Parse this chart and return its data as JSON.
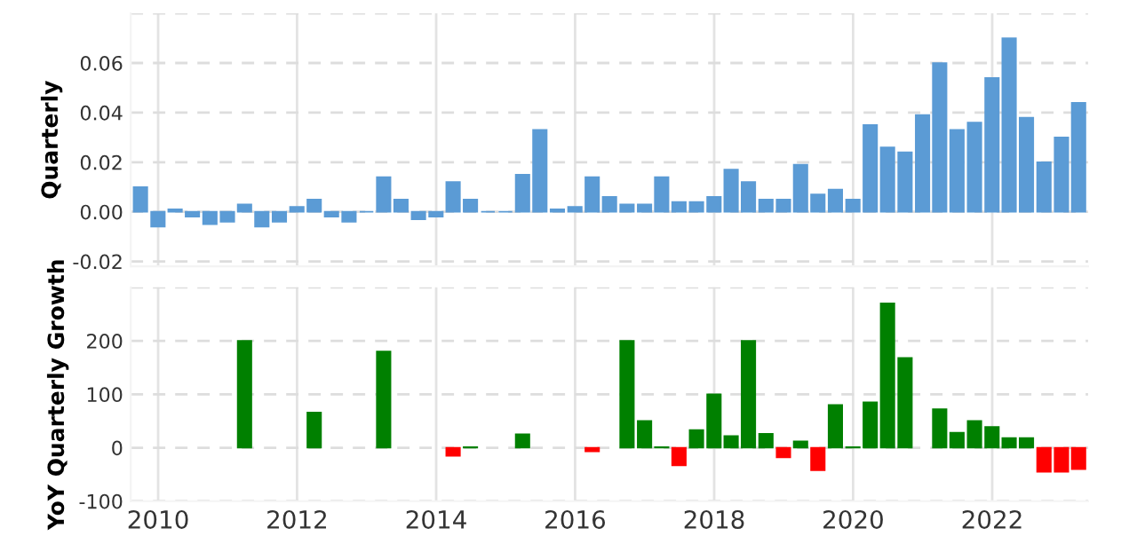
{
  "chart_data": [
    {
      "type": "bar",
      "ylabel": "Quarterly",
      "x": [
        "2009-09-30",
        "2009-12-31",
        "2010-03-31",
        "2010-06-30",
        "2010-09-30",
        "2010-12-31",
        "2011-03-31",
        "2011-06-30",
        "2011-09-30",
        "2011-12-31",
        "2012-03-31",
        "2012-06-30",
        "2012-09-30",
        "2012-12-31",
        "2013-03-31",
        "2013-06-30",
        "2013-09-30",
        "2013-12-31",
        "2014-03-31",
        "2014-06-30",
        "2014-09-30",
        "2014-12-31",
        "2015-03-31",
        "2015-06-30",
        "2015-09-30",
        "2015-12-31",
        "2016-03-31",
        "2016-06-30",
        "2016-09-30",
        "2016-12-31",
        "2017-03-31",
        "2017-06-30",
        "2017-09-30",
        "2017-12-31",
        "2018-03-31",
        "2018-06-30",
        "2018-09-30",
        "2018-12-31",
        "2019-03-31",
        "2019-06-30",
        "2019-09-30",
        "2019-12-31",
        "2020-03-31",
        "2020-06-30",
        "2020-09-30",
        "2020-12-31",
        "2021-03-31",
        "2021-06-30",
        "2021-09-30",
        "2021-12-31",
        "2022-03-31",
        "2022-06-30",
        "2022-09-30",
        "2022-12-31",
        "2023-03-31"
      ],
      "series": [
        {
          "color": "#5b9bd5",
          "values": [
            0.01,
            -0.006,
            0.001,
            -0.002,
            -0.005,
            -0.004,
            0.003,
            -0.006,
            -0.004,
            0.002,
            0.005,
            -0.002,
            -0.004,
            0.0,
            0.014,
            0.005,
            -0.003,
            -0.002,
            0.012,
            0.005,
            0.0,
            0.0,
            0.015,
            0.033,
            0.001,
            0.002,
            0.014,
            0.006,
            0.003,
            0.003,
            0.014,
            0.004,
            0.004,
            0.006,
            0.017,
            0.012,
            0.005,
            0.005,
            0.019,
            0.007,
            0.009,
            0.005,
            0.035,
            0.026,
            0.024,
            0.039,
            0.06,
            0.033,
            0.036,
            0.054,
            0.07,
            0.038,
            0.02,
            0.03,
            0.044
          ]
        }
      ],
      "xlim": [
        "2009-08-10",
        "2023-05-20"
      ],
      "xticks": [
        "2010",
        "2012",
        "2014",
        "2016",
        "2018",
        "2020",
        "2022"
      ],
      "ylim": [
        -0.022,
        0.08
      ],
      "yticks": [
        {
          "value": -0.02,
          "label": "-0.02"
        },
        {
          "value": 0,
          "label": "0.00"
        },
        {
          "value": 0.02,
          "label": "0.02"
        },
        {
          "value": 0.04,
          "label": "0.04"
        },
        {
          "value": 0.06,
          "label": "0.06"
        },
        {
          "value": 0.08,
          "label": null
        }
      ],
      "grid": true,
      "tick_labels": "y"
    },
    {
      "type": "bar",
      "ylabel": "YoY Quarterly Growth",
      "x": [
        "2011-03-31",
        "2012-03-31",
        "2013-03-31",
        "2014-03-31",
        "2014-06-30",
        "2015-03-31",
        "2016-03-31",
        "2016-09-30",
        "2016-12-31",
        "2017-03-31",
        "2017-06-30",
        "2017-09-30",
        "2017-12-31",
        "2018-03-31",
        "2018-06-30",
        "2018-09-30",
        "2018-12-31",
        "2019-03-31",
        "2019-06-30",
        "2019-09-30",
        "2019-12-31",
        "2020-03-31",
        "2020-06-30",
        "2020-09-30",
        "2021-03-31",
        "2021-06-30",
        "2021-09-30",
        "2021-12-31",
        "2022-03-31",
        "2022-06-30",
        "2022-09-30",
        "2022-12-31",
        "2023-03-31"
      ],
      "values": [
        200,
        66,
        180,
        -15,
        1,
        25,
        -7,
        200,
        50,
        1,
        -33,
        33,
        100,
        22,
        200,
        26,
        -18,
        12,
        -42,
        80,
        1,
        85,
        270,
        168,
        72,
        28,
        50,
        39,
        18,
        18,
        -45,
        -45,
        -40
      ],
      "colors": [
        "#008000",
        "#008000",
        "#008000",
        "#ff0000",
        "#008000",
        "#008000",
        "#ff0000",
        "#008000",
        "#008000",
        "#008000",
        "#ff0000",
        "#008000",
        "#008000",
        "#008000",
        "#008000",
        "#008000",
        "#ff0000",
        "#008000",
        "#ff0000",
        "#008000",
        "#008000",
        "#008000",
        "#008000",
        "#008000",
        "#008000",
        "#008000",
        "#008000",
        "#008000",
        "#008000",
        "#008000",
        "#ff0000",
        "#ff0000",
        "#ff0000"
      ],
      "xlim": [
        "2009-08-10",
        "2023-05-20"
      ],
      "xticks": [
        "2010",
        "2012",
        "2014",
        "2016",
        "2018",
        "2020",
        "2022"
      ],
      "ylim": [
        -100,
        300
      ],
      "yticks": [
        -100,
        0,
        100,
        200,
        {
          "value": 300,
          "label": null
        }
      ],
      "grid": true
    }
  ]
}
